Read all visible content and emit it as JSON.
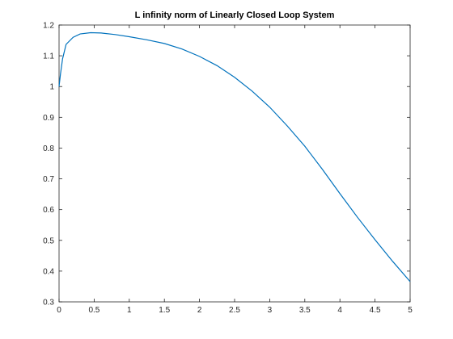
{
  "chart_data": {
    "type": "line",
    "title": "L infinity norm of Linearly Closed Loop System",
    "x": [
      0,
      0.02,
      0.05,
      0.1,
      0.2,
      0.3,
      0.45,
      0.6,
      0.8,
      1,
      1.25,
      1.5,
      1.75,
      2,
      2.25,
      2.5,
      2.75,
      3,
      3.25,
      3.5,
      3.75,
      4,
      4.25,
      4.5,
      4.75,
      5
    ],
    "series": [
      {
        "color": "#0072bd",
        "values": [
          1.0,
          1.04,
          1.09,
          1.137,
          1.16,
          1.171,
          1.175,
          1.174,
          1.169,
          1.162,
          1.152,
          1.14,
          1.122,
          1.098,
          1.068,
          1.03,
          0.985,
          0.933,
          0.872,
          0.806,
          0.731,
          0.652,
          0.575,
          0.502,
          0.432,
          0.366
        ]
      }
    ],
    "xlim": [
      0,
      5
    ],
    "xticks": [
      0,
      0.5,
      1,
      1.5,
      2,
      2.5,
      3,
      3.5,
      4,
      4.5,
      5
    ],
    "ylim": [
      0.3,
      1.2
    ],
    "yticks": [
      0.3,
      0.4,
      0.5,
      0.6,
      0.7,
      0.8,
      0.9,
      1,
      1.1,
      1.2
    ]
  }
}
